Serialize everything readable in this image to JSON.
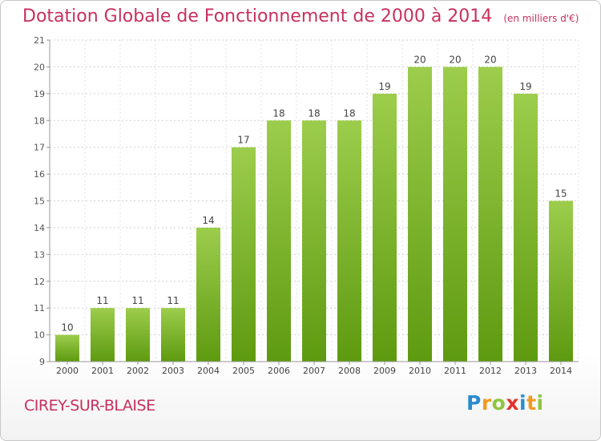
{
  "chart_data": {
    "type": "bar",
    "title": "Dotation Globale de Fonctionnement de 2000 à 2014",
    "subtitle": "(en milliers d'€)",
    "categories": [
      "2000",
      "2001",
      "2002",
      "2003",
      "2004",
      "2005",
      "2006",
      "2007",
      "2008",
      "2009",
      "2010",
      "2011",
      "2012",
      "2013",
      "2014"
    ],
    "values": [
      10,
      11,
      11,
      11,
      14,
      17,
      18,
      18,
      18,
      19,
      20,
      20,
      20,
      19,
      15
    ],
    "ylim": [
      9,
      21
    ],
    "yticks": [
      9,
      10,
      11,
      12,
      13,
      14,
      15,
      16,
      17,
      18,
      19,
      20,
      21
    ],
    "xlabel": "",
    "ylabel": "",
    "grid": true
  },
  "footer": {
    "town": "CIREY-SUR-BLAISE",
    "logo_letters": [
      "P",
      "r",
      "o",
      "x",
      "i",
      "t",
      "i"
    ],
    "logo_colors": [
      "#2b8ccf",
      "#f29a1f",
      "#8dc63f",
      "#e5322d",
      "#2b8ccf",
      "#f29a1f",
      "#8dc63f"
    ]
  },
  "colors": {
    "title": "#c8305e",
    "bar_light": "#9ccd4c",
    "bar_dark": "#5e9a10"
  }
}
